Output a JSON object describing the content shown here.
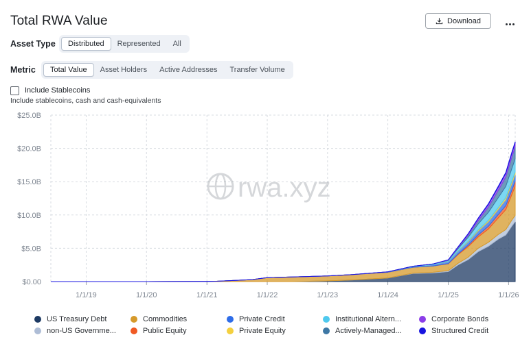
{
  "title": "Total RWA Value",
  "download_label": "Download",
  "asset_type": {
    "label": "Asset Type",
    "options": [
      "Distributed",
      "Represented",
      "All"
    ],
    "active": "Distributed"
  },
  "metric": {
    "label": "Metric",
    "options": [
      "Total Value",
      "Asset Holders",
      "Active Addresses",
      "Transfer Volume"
    ],
    "active": "Total Value"
  },
  "stablecoins": {
    "label": "Include Stablecoins",
    "description": "Include stablecoins, cash and cash-equivalents",
    "checked": false
  },
  "watermark": "rwa.xyz",
  "colors": {
    "accent_border": "#b9c2cf",
    "grid": "#d7dbe0",
    "axis_text": "#7d8590"
  },
  "chart_data": {
    "type": "area",
    "stacked": true,
    "ylim": [
      0,
      25000000000
    ],
    "y_ticks": [
      "$0.00",
      "$5.0B",
      "$10.0B",
      "$15.0B",
      "$20.0B",
      "$25.0B"
    ],
    "x_ticks": [
      "1/1/19",
      "1/1/20",
      "1/1/21",
      "1/1/22",
      "1/1/23",
      "1/1/24",
      "1/1/25",
      "1/1/26"
    ],
    "x_start": "2018-06-01",
    "x_end": "2026-02-10",
    "grid": true,
    "x": [
      "2018-06-01",
      "2019-01-01",
      "2020-01-01",
      "2021-01-01",
      "2021-03-01",
      "2021-10-01",
      "2022-01-01",
      "2022-06-01",
      "2023-01-01",
      "2023-06-01",
      "2024-01-01",
      "2024-06-01",
      "2024-10-01",
      "2025-01-01",
      "2025-03-01",
      "2025-05-01",
      "2025-07-01",
      "2025-09-01",
      "2025-11-01",
      "2025-12-15",
      "2026-01-20",
      "2026-02-10"
    ],
    "series": [
      {
        "name": "US Treasury Debt",
        "color": "#1d3a63",
        "values": [
          0,
          0,
          0,
          0,
          0,
          0,
          0,
          0,
          0.1,
          0.25,
          0.55,
          1.2,
          1.3,
          1.5,
          2.5,
          3.3,
          4.5,
          5.3,
          6.4,
          7.0,
          8.3,
          9.0
        ]
      },
      {
        "name": "non-US Governme...",
        "color": "#aebdd6",
        "values": [
          0,
          0,
          0,
          0,
          0,
          0,
          0,
          0,
          0,
          0,
          0,
          0.05,
          0.1,
          0.15,
          0.25,
          0.35,
          0.5,
          0.6,
          0.7,
          0.8,
          0.9,
          0.95
        ]
      },
      {
        "name": "Commodities",
        "color": "#d69a2b",
        "values": [
          0,
          0,
          0,
          0.02,
          0.05,
          0.3,
          0.6,
          0.7,
          0.75,
          0.8,
          0.85,
          0.9,
          0.95,
          1.0,
          1.3,
          1.6,
          1.7,
          2.0,
          2.5,
          3.0,
          3.8,
          4.4
        ]
      },
      {
        "name": "Public Equity",
        "color": "#f05a24",
        "values": [
          0,
          0,
          0,
          0,
          0,
          0,
          0,
          0,
          0,
          0,
          0,
          0,
          0,
          0.05,
          0.1,
          0.2,
          0.3,
          0.4,
          0.5,
          0.6,
          0.65,
          0.7
        ]
      },
      {
        "name": "Private Credit",
        "color": "#2f6de8",
        "values": [
          0,
          0,
          0,
          0,
          0,
          0,
          0,
          0,
          0,
          0,
          0.05,
          0.1,
          0.2,
          0.3,
          0.4,
          0.5,
          0.6,
          0.7,
          0.8,
          0.9,
          1.0,
          1.0
        ]
      },
      {
        "name": "Private Equity",
        "color": "#f4d03f",
        "values": [
          0,
          0,
          0,
          0,
          0,
          0,
          0,
          0,
          0,
          0,
          0,
          0,
          0,
          0.02,
          0.05,
          0.1,
          0.15,
          0.2,
          0.25,
          0.3,
          0.35,
          0.4
        ]
      },
      {
        "name": "Institutional Altern...",
        "color": "#4fc9ee",
        "values": [
          0,
          0,
          0,
          0,
          0,
          0,
          0,
          0,
          0,
          0,
          0.02,
          0.05,
          0.1,
          0.15,
          0.35,
          0.6,
          0.9,
          1.2,
          1.5,
          1.7,
          1.9,
          2.0
        ]
      },
      {
        "name": "Actively-Managed...",
        "color": "#3e78a5",
        "values": [
          0,
          0,
          0,
          0,
          0,
          0,
          0,
          0,
          0,
          0,
          0,
          0,
          0,
          0.05,
          0.15,
          0.3,
          0.5,
          0.8,
          1.1,
          1.4,
          1.7,
          1.8
        ]
      },
      {
        "name": "Corporate Bonds",
        "color": "#8b3ee8",
        "values": [
          0,
          0,
          0,
          0,
          0,
          0,
          0,
          0,
          0,
          0,
          0,
          0,
          0,
          0.05,
          0.1,
          0.2,
          0.3,
          0.4,
          0.5,
          0.55,
          0.6,
          0.6
        ]
      },
      {
        "name": "Structured Credit",
        "color": "#1814e0",
        "values": [
          0,
          0,
          0,
          0,
          0,
          0,
          0,
          0,
          0,
          0,
          0,
          0,
          0,
          0,
          0.02,
          0.05,
          0.08,
          0.1,
          0.12,
          0.14,
          0.15,
          0.15
        ]
      }
    ],
    "value_unit": "B"
  },
  "legend_layout": [
    [
      "US Treasury Debt",
      "Commodities",
      "Private Credit",
      "Institutional Altern...",
      "Corporate Bonds"
    ],
    [
      "non-US Governme...",
      "Public Equity",
      "Private Equity",
      "Actively-Managed...",
      "Structured Credit"
    ]
  ]
}
